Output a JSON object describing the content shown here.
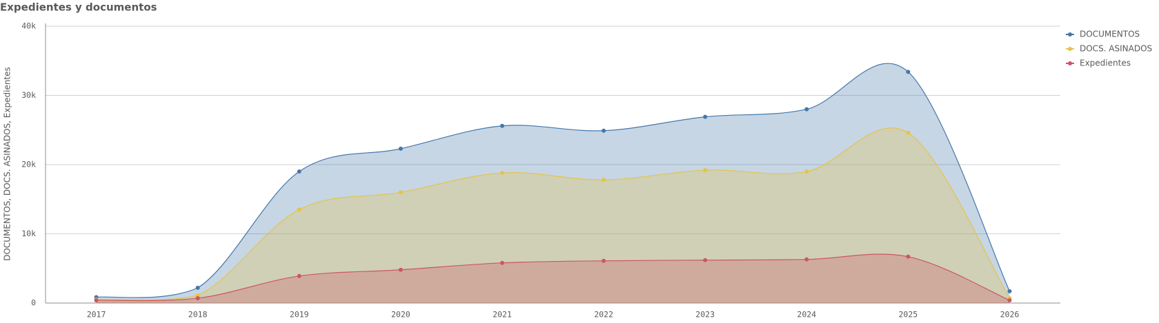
{
  "chart_data": {
    "type": "area",
    "title": "Expedientes y documentos",
    "y_label": "DOCUMENTOS, DOCS. ASINADOS, Expedientes",
    "categories": [
      "2017",
      "2018",
      "2019",
      "2020",
      "2021",
      "2022",
      "2023",
      "2024",
      "2025",
      "2026"
    ],
    "series": [
      {
        "name": "DOCUMENTOS",
        "color": "#4477aa",
        "values": [
          850,
          2200,
          19000,
          22300,
          25600,
          24900,
          26900,
          28000,
          33400,
          1700
        ]
      },
      {
        "name": "DOCS. ASINADOS",
        "color": "#e3c44a",
        "values": [
          500,
          1100,
          13500,
          16000,
          18800,
          17800,
          19200,
          19000,
          24600,
          700
        ]
      },
      {
        "name": "Expedientes",
        "color": "#cc5566",
        "values": [
          400,
          700,
          3900,
          4800,
          5800,
          6100,
          6200,
          6300,
          6700,
          400
        ]
      }
    ],
    "ylim": [
      0,
      40000
    ],
    "yticks": [
      0,
      {
        "value": 10000,
        "label": "10k"
      },
      {
        "value": 20000,
        "label": "20k"
      },
      {
        "value": 30000,
        "label": "30k"
      },
      {
        "value": 40000,
        "label": "40k"
      }
    ],
    "grid": true,
    "legend": "top-right"
  }
}
